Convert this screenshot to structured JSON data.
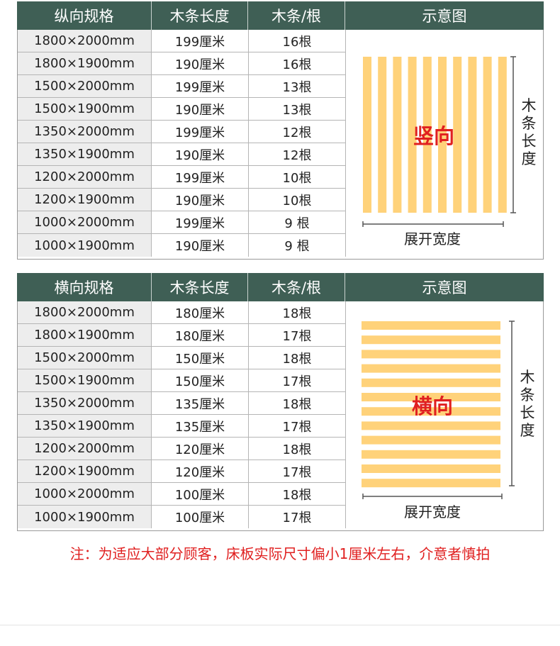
{
  "vertical": {
    "headers": [
      "纵向规格",
      "木条长度",
      "木条/根",
      "示意图"
    ],
    "rows": [
      [
        "1800×2000mm",
        "199厘米",
        "16根"
      ],
      [
        "1800×1900mm",
        "190厘米",
        "16根"
      ],
      [
        "1500×2000mm",
        "199厘米",
        "13根"
      ],
      [
        "1500×1900mm",
        "190厘米",
        "13根"
      ],
      [
        "1350×2000mm",
        "199厘米",
        "12根"
      ],
      [
        "1350×1900mm",
        "190厘米",
        "12根"
      ],
      [
        "1200×2000mm",
        "199厘米",
        "10根"
      ],
      [
        "1200×1900mm",
        "190厘米",
        "10根"
      ],
      [
        "1000×2000mm",
        "199厘米",
        "9 根"
      ],
      [
        "1000×1900mm",
        "190厘米",
        "9 根"
      ]
    ],
    "diagram_label": "竖向",
    "length_label": "木条长度",
    "width_label": "展开宽度"
  },
  "horizontal": {
    "headers": [
      "横向规格",
      "木条长度",
      "木条/根",
      "示意图"
    ],
    "rows": [
      [
        "1800×2000mm",
        "180厘米",
        "18根"
      ],
      [
        "1800×1900mm",
        "180厘米",
        "17根"
      ],
      [
        "1500×2000mm",
        "150厘米",
        "18根"
      ],
      [
        "1500×1900mm",
        "150厘米",
        "17根"
      ],
      [
        "1350×2000mm",
        "135厘米",
        "18根"
      ],
      [
        "1350×1900mm",
        "135厘米",
        "17根"
      ],
      [
        "1200×2000mm",
        "120厘米",
        "18根"
      ],
      [
        "1200×1900mm",
        "120厘米",
        "17根"
      ],
      [
        "1000×2000mm",
        "100厘米",
        "18根"
      ],
      [
        "1000×1900mm",
        "100厘米",
        "17根"
      ]
    ],
    "diagram_label": "横向",
    "length_label": "木条长度",
    "width_label": "展开宽度"
  },
  "note": "注：为适应大部分顾客，床板实际尺寸偏小1厘米左右，介意者慎拍",
  "colors": {
    "header_bg": "#3f5f55",
    "slat": "#ffd27a",
    "label_red": "#e02020"
  }
}
